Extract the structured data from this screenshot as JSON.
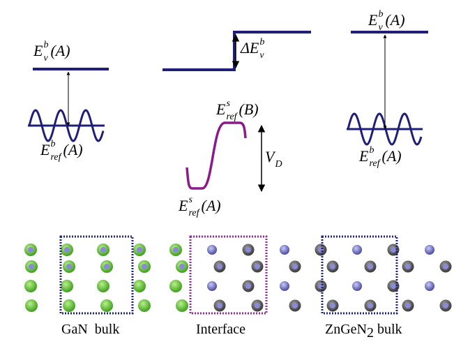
{
  "labels": [
    {
      "base": "E",
      "sup": "b",
      "sub": "v",
      "tail": "(A)"
    },
    {
      "base": "E",
      "sup": "b",
      "sub": "ref",
      "tail": "(A)"
    },
    {
      "base": "ΔE",
      "sup": "b",
      "sub": "v"
    },
    {
      "base": "E",
      "sup": "s",
      "sub": "ref",
      "tail": "(B)"
    },
    {
      "base": "V",
      "sub": "D"
    },
    {
      "base": "E",
      "sup": "s",
      "sub": "ref",
      "tail": "(A)"
    },
    {
      "base": "E",
      "sup": "b",
      "sub": "v",
      "tail": "(A)"
    },
    {
      "base": "E",
      "sup": "b",
      "sub": "ref",
      "tail": "(A)"
    }
  ],
  "captions": [
    {
      "text": "GaN  bulk"
    },
    {
      "text": "Interface"
    },
    {
      "text": "ZnGeN",
      "sub": "2",
      "tail": " bulk"
    }
  ]
}
